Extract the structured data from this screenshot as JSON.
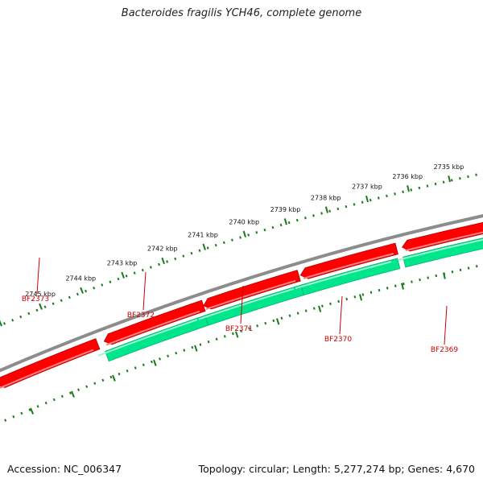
{
  "title": "Bacteroides fragilis YCH46, complete genome",
  "footer": {
    "accession": "Accession: NC_006347",
    "summary": "Topology: circular; Length: 5,277,274 bp; Genes: 4,670"
  },
  "colors": {
    "backbone": "#8c8c8c",
    "reverse_gene": "#ff0000",
    "forward_gene": "#00e68c",
    "tick": "#1a7a1a",
    "label": "#cc0000"
  },
  "kbp_labels": [
    "2745 kbp",
    "2744 kbp",
    "2743 kbp",
    "2742 kbp",
    "2741 kbp",
    "2740 kbp",
    "2739 kbp",
    "2738 kbp",
    "2737 kbp",
    "2736 kbp",
    "2735 kbp"
  ],
  "genes": [
    {
      "name": "BF2373"
    },
    {
      "name": "BF2372"
    },
    {
      "name": "BF2371"
    },
    {
      "name": "BF2370"
    },
    {
      "name": "BF2369"
    }
  ]
}
